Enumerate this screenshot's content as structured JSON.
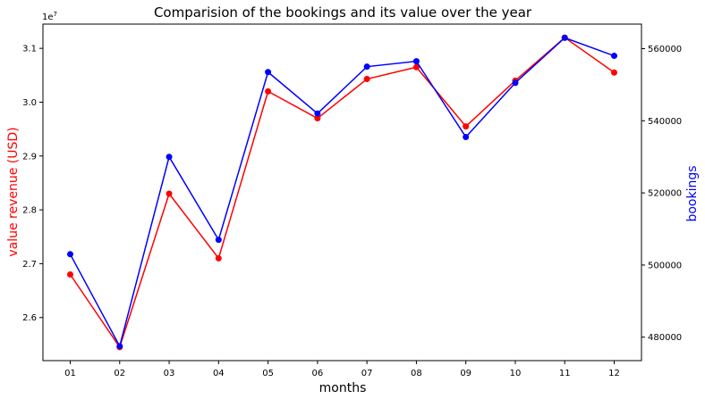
{
  "chart_data": {
    "type": "line",
    "title": "Comparision of the bookings and its value over the year",
    "xlabel": "months",
    "categories": [
      "01",
      "02",
      "03",
      "04",
      "05",
      "06",
      "07",
      "08",
      "09",
      "10",
      "11",
      "12"
    ],
    "left_axis": {
      "label": "value revenue (USD)",
      "offset_text": "1e7",
      "color": "#ff0000",
      "ylim": [
        2.52,
        3.145
      ],
      "ticks": [
        2.6,
        2.7,
        2.8,
        2.9,
        3.0,
        3.1
      ],
      "tick_labels": [
        "2.6",
        "2.7",
        "2.8",
        "2.9",
        "3.0",
        "3.1"
      ]
    },
    "right_axis": {
      "label": "bookings",
      "color": "#0000ff",
      "ylim": [
        473500,
        566800
      ],
      "ticks": [
        480000,
        500000,
        520000,
        540000,
        560000
      ],
      "tick_labels": [
        "480000",
        "500000",
        "520000",
        "540000",
        "560000"
      ]
    },
    "series": [
      {
        "name": "value revenue (USD)",
        "axis": "left",
        "color": "#ff0000",
        "values": [
          2.68,
          2.545,
          2.83,
          2.71,
          3.02,
          2.97,
          3.043,
          3.065,
          2.955,
          3.04,
          3.12,
          3.055
        ]
      },
      {
        "name": "bookings",
        "axis": "right",
        "color": "#0000ff",
        "values": [
          503000,
          477500,
          530000,
          507000,
          553500,
          542000,
          555000,
          556500,
          535500,
          550500,
          563000,
          558000
        ]
      }
    ],
    "grid": false
  }
}
